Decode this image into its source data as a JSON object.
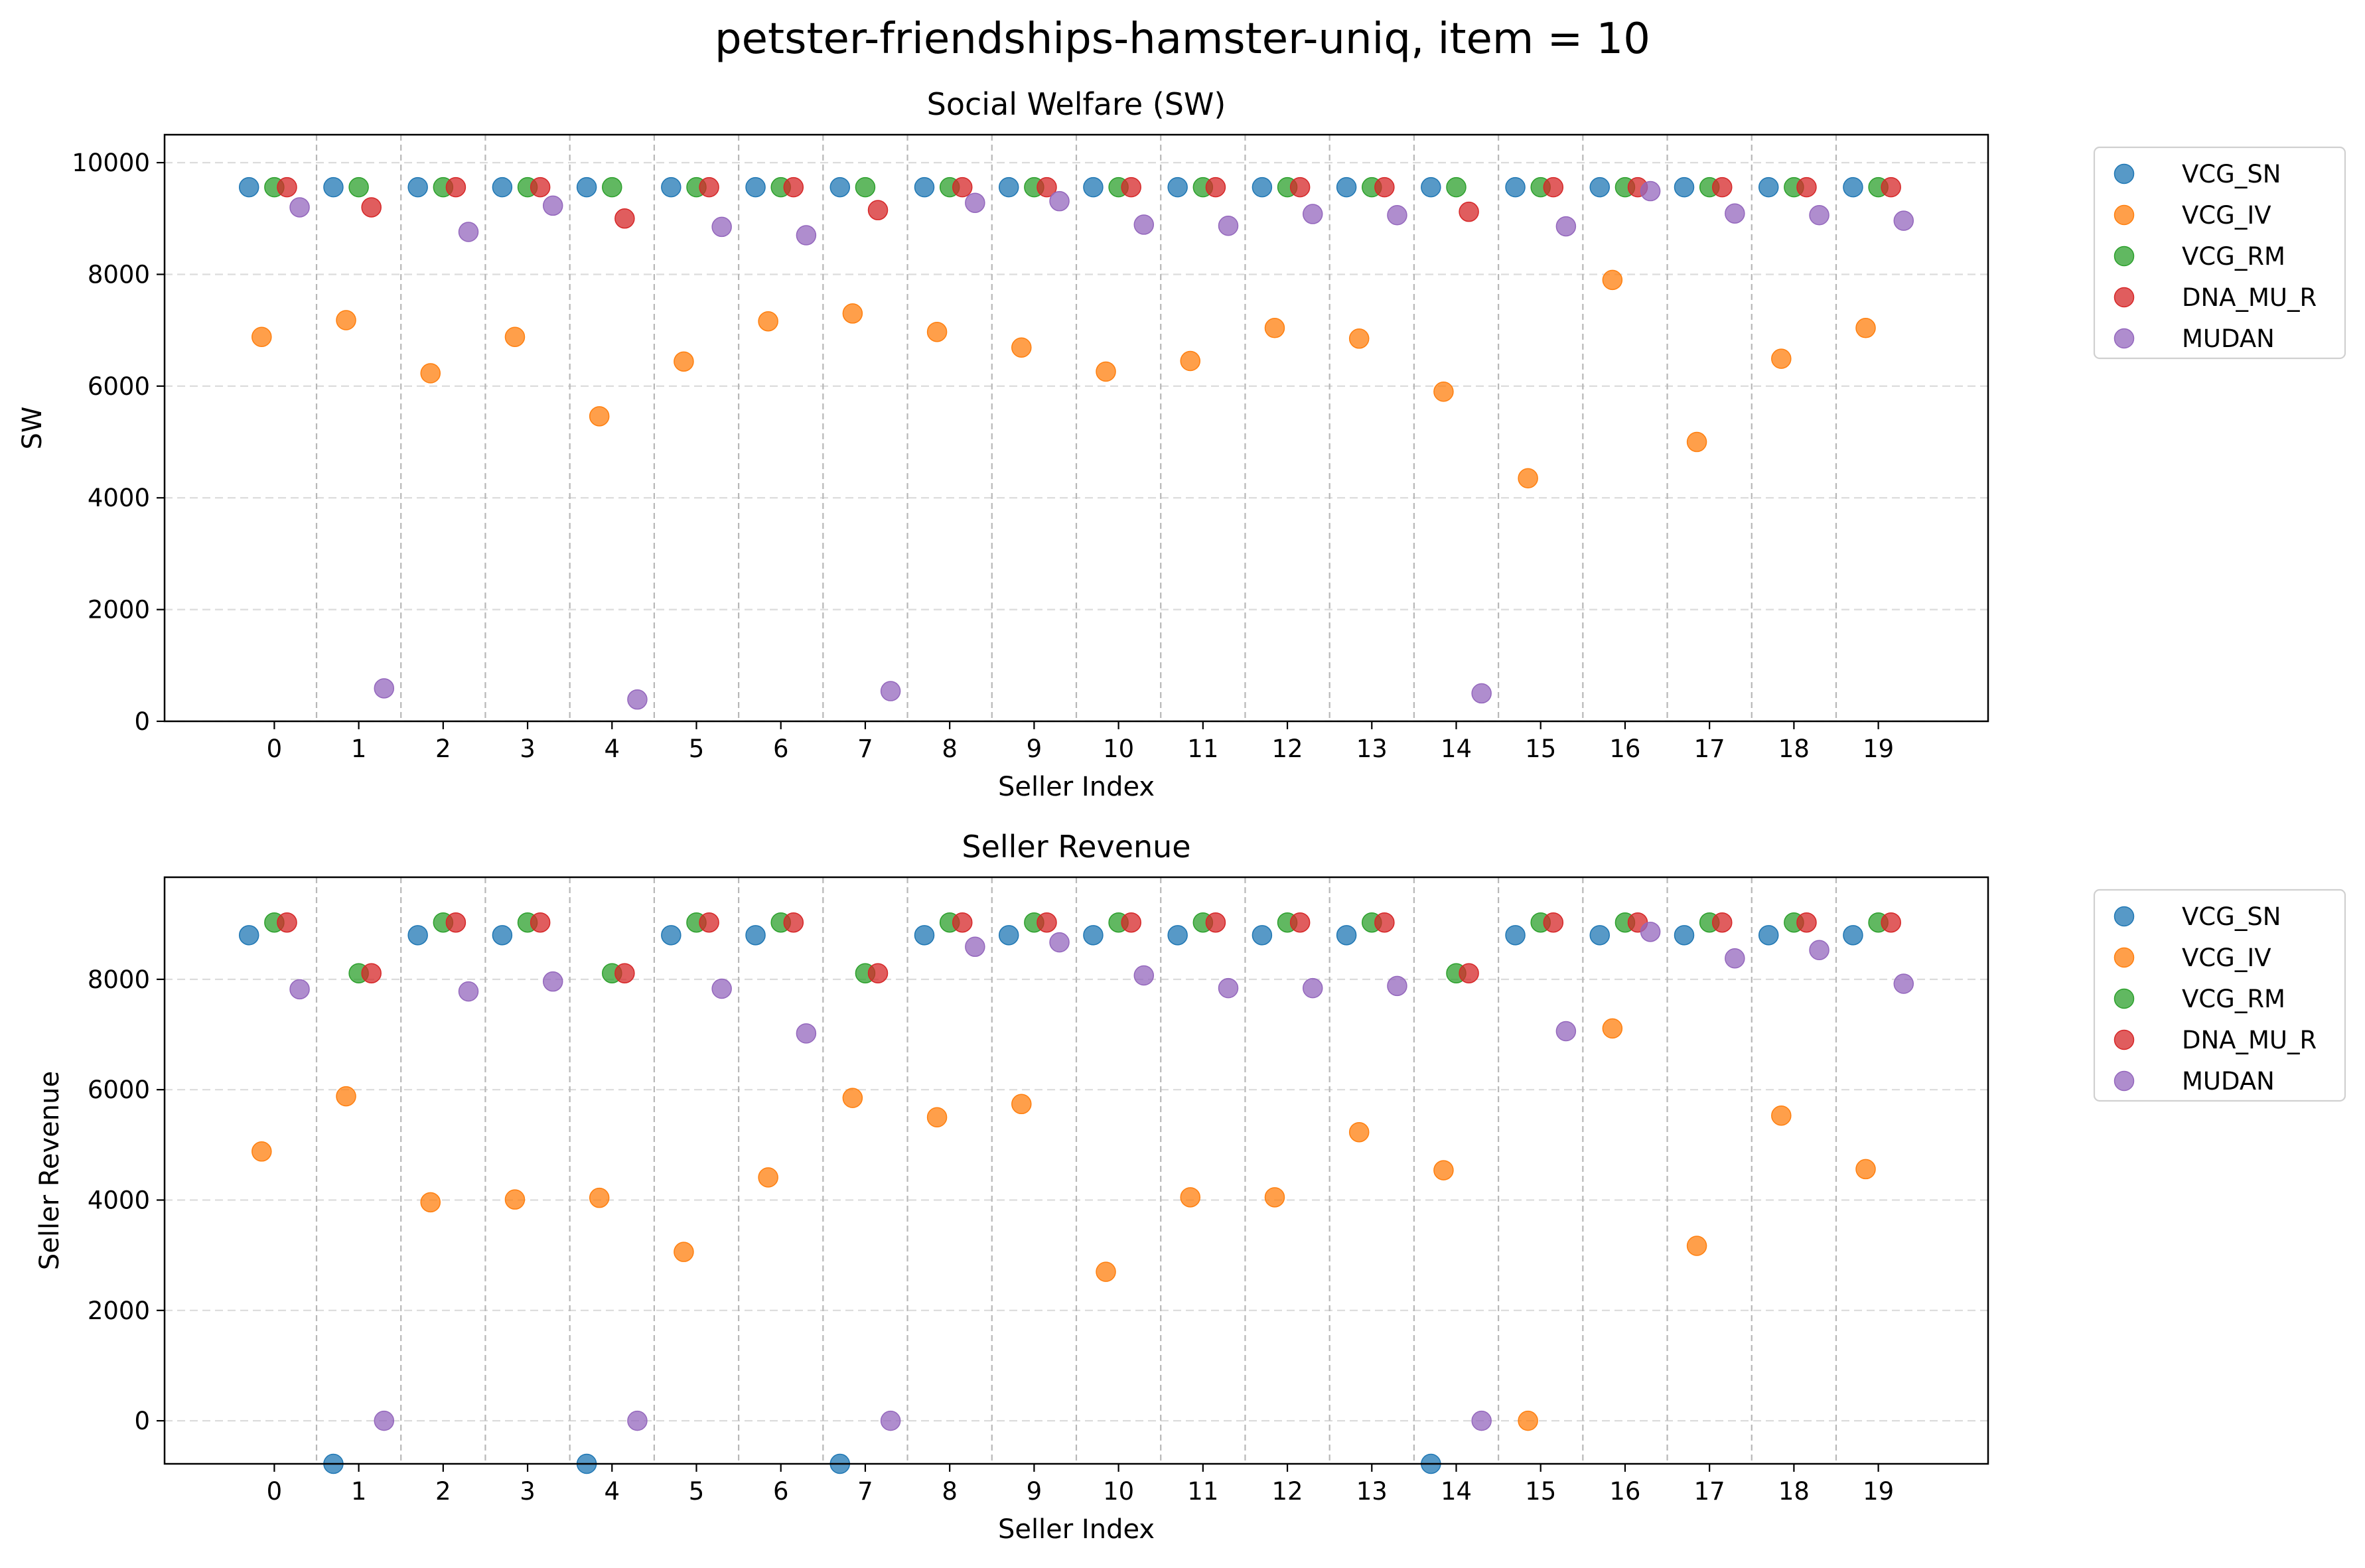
{
  "suptitle": "petster-friendships-hamster-uniq, item = 10",
  "colors": {
    "VCG_SN": "#1f77b4",
    "VCG_IV": "#ff7f0e",
    "VCG_RM": "#2ca02c",
    "DNA_MU_R": "#d62728",
    "MUDAN": "#9467bd"
  },
  "chart_data": [
    {
      "type": "scatter",
      "title": "Social Welfare (SW)",
      "xlabel": "Seller Index",
      "ylabel": "SW",
      "categories": [
        "0",
        "1",
        "2",
        "3",
        "4",
        "5",
        "6",
        "7",
        "8",
        "9",
        "10",
        "11",
        "12",
        "13",
        "14",
        "15",
        "16",
        "17",
        "18",
        "19"
      ],
      "xlim": [
        -1.3,
        20.3
      ],
      "ylim": [
        0,
        10500
      ],
      "yticks": [
        0,
        2000,
        4000,
        6000,
        8000,
        10000
      ],
      "grid": true,
      "legend": "outside-right",
      "series": [
        {
          "name": "VCG_SN",
          "offset": -0.3,
          "values": [
            9560,
            9560,
            9560,
            9560,
            9560,
            9560,
            9560,
            9560,
            9560,
            9560,
            9560,
            9560,
            9560,
            9560,
            9560,
            9560,
            9560,
            9560,
            9560,
            9560
          ]
        },
        {
          "name": "VCG_IV",
          "offset": -0.15,
          "values": [
            6880,
            7180,
            6230,
            6880,
            5460,
            6440,
            7160,
            7300,
            6970,
            6690,
            6260,
            6450,
            7040,
            6850,
            5900,
            4350,
            7900,
            5000,
            6490,
            7040
          ]
        },
        {
          "name": "VCG_RM",
          "offset": 0.0,
          "values": [
            9560,
            9560,
            9560,
            9560,
            9560,
            9560,
            9560,
            9560,
            9560,
            9560,
            9560,
            9560,
            9560,
            9560,
            9560,
            9560,
            9560,
            9560,
            9560,
            9560
          ]
        },
        {
          "name": "DNA_MU_R",
          "offset": 0.15,
          "values": [
            9560,
            9200,
            9560,
            9560,
            9000,
            9560,
            9560,
            9150,
            9560,
            9560,
            9560,
            9560,
            9560,
            9560,
            9120,
            9560,
            9560,
            9560,
            9560,
            9560
          ]
        },
        {
          "name": "MUDAN",
          "offset": 0.3,
          "values": [
            9200,
            590,
            8760,
            9230,
            390,
            8850,
            8700,
            540,
            9280,
            9310,
            8890,
            8870,
            9080,
            9060,
            500,
            8860,
            9490,
            9090,
            9060,
            8960
          ]
        }
      ]
    },
    {
      "type": "scatter",
      "title": "Seller Revenue",
      "xlabel": "Seller Index",
      "ylabel": "Seller Revenue",
      "categories": [
        "0",
        "1",
        "2",
        "3",
        "4",
        "5",
        "6",
        "7",
        "8",
        "9",
        "10",
        "11",
        "12",
        "13",
        "14",
        "15",
        "16",
        "17",
        "18",
        "19"
      ],
      "xlim": [
        -1.3,
        20.3
      ],
      "ylim": [
        -780,
        9850
      ],
      "yticks": [
        0,
        2000,
        4000,
        6000,
        8000
      ],
      "grid": true,
      "legend": "outside-right",
      "series": [
        {
          "name": "VCG_SN",
          "offset": -0.3,
          "values": [
            8800,
            -780,
            8800,
            8800,
            -780,
            8800,
            8800,
            -780,
            8800,
            8800,
            8800,
            8800,
            8800,
            8800,
            -780,
            8800,
            8800,
            8800,
            8800,
            8800
          ]
        },
        {
          "name": "VCG_IV",
          "offset": -0.15,
          "values": [
            4880,
            5880,
            3960,
            4010,
            4040,
            3060,
            4410,
            5850,
            5500,
            5740,
            2700,
            4050,
            4050,
            5230,
            4540,
            0,
            7110,
            3170,
            5530,
            4560
          ]
        },
        {
          "name": "VCG_RM",
          "offset": 0.0,
          "values": [
            9030,
            8110,
            9030,
            9030,
            8110,
            9030,
            9030,
            8110,
            9030,
            9030,
            9030,
            9030,
            9030,
            9030,
            8110,
            9030,
            9030,
            9030,
            9030,
            9030
          ]
        },
        {
          "name": "DNA_MU_R",
          "offset": 0.15,
          "values": [
            9030,
            8110,
            9030,
            9030,
            8110,
            9030,
            9030,
            8110,
            9030,
            9030,
            9030,
            9030,
            9030,
            9030,
            8110,
            9030,
            9030,
            9030,
            9030,
            9030
          ]
        },
        {
          "name": "MUDAN",
          "offset": 0.3,
          "values": [
            7820,
            0,
            7780,
            7960,
            0,
            7830,
            7020,
            0,
            8590,
            8670,
            8070,
            7840,
            7840,
            7880,
            0,
            7060,
            8860,
            8380,
            8530,
            7920
          ]
        }
      ]
    }
  ]
}
